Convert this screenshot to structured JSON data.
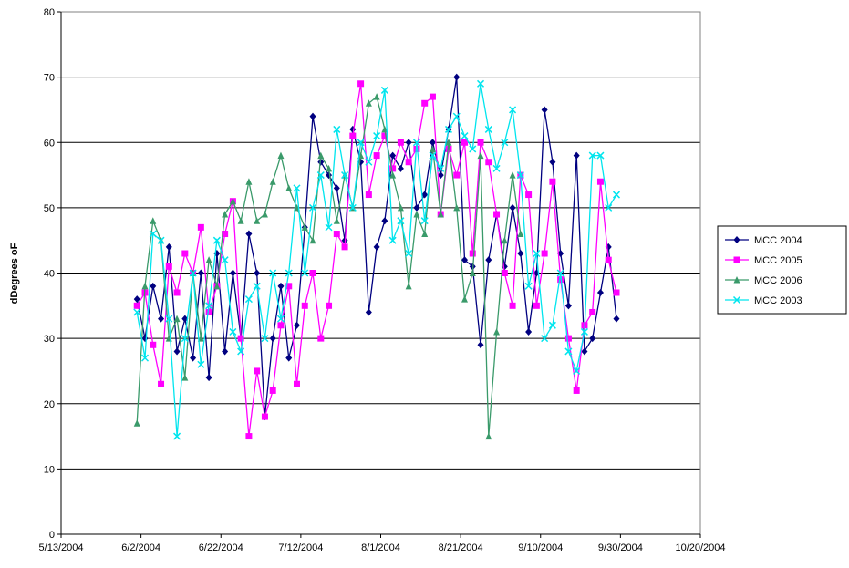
{
  "chart_data": {
    "type": "line",
    "y_label": "dDegrees  oF",
    "x": [
      "6/1/2004",
      "6/3/2004",
      "6/5/2004",
      "6/7/2004",
      "6/9/2004",
      "6/11/2004",
      "6/13/2004",
      "6/15/2004",
      "6/17/2004",
      "6/19/2004",
      "6/21/2004",
      "6/23/2004",
      "6/25/2004",
      "6/27/2004",
      "6/29/2004",
      "7/1/2004",
      "7/3/2004",
      "7/5/2004",
      "7/7/2004",
      "7/9/2004",
      "7/11/2004",
      "7/13/2004",
      "7/15/2004",
      "7/17/2004",
      "7/19/2004",
      "7/21/2004",
      "7/23/2004",
      "7/25/2004",
      "7/27/2004",
      "7/29/2004",
      "7/31/2004",
      "8/2/2004",
      "8/4/2004",
      "8/6/2004",
      "8/8/2004",
      "8/10/2004",
      "8/12/2004",
      "8/14/2004",
      "8/16/2004",
      "8/18/2004",
      "8/20/2004",
      "8/22/2004",
      "8/24/2004",
      "8/26/2004",
      "8/28/2004",
      "8/30/2004",
      "9/1/2004",
      "9/3/2004",
      "9/5/2004",
      "9/7/2004",
      "9/9/2004",
      "9/11/2004",
      "9/13/2004",
      "9/15/2004",
      "9/17/2004",
      "9/19/2004",
      "9/21/2004",
      "9/23/2004",
      "9/25/2004",
      "9/27/2004",
      "9/29/2004"
    ],
    "series": [
      {
        "name": "MCC 2004",
        "color": "#000080",
        "marker": "diamond",
        "values": [
          36,
          30,
          38,
          33,
          44,
          28,
          33,
          27,
          40,
          24,
          43,
          28,
          40,
          30,
          46,
          40,
          18,
          30,
          38,
          27,
          32,
          47,
          64,
          57,
          55,
          53,
          45,
          62,
          57,
          34,
          44,
          48,
          58,
          56,
          60,
          50,
          52,
          60,
          55,
          62,
          70,
          42,
          41,
          29,
          42,
          49,
          41,
          50,
          43,
          31,
          40,
          65,
          57,
          43,
          35,
          58,
          28,
          30,
          37,
          44,
          33
        ]
      },
      {
        "name": "MCC 2005",
        "color": "#ff00ff",
        "marker": "square",
        "values": [
          35,
          37,
          29,
          23,
          41,
          37,
          43,
          40,
          47,
          34,
          38,
          46,
          51,
          30,
          15,
          25,
          18,
          22,
          32,
          38,
          23,
          35,
          40,
          30,
          35,
          46,
          44,
          61,
          69,
          52,
          58,
          61,
          56,
          60,
          57,
          59,
          66,
          67,
          49,
          59,
          55,
          60,
          43,
          60,
          57,
          49,
          40,
          35,
          55,
          52,
          35,
          43,
          54,
          39,
          30,
          22,
          32,
          34,
          54,
          42,
          37
        ]
      },
      {
        "name": "MCC 2006",
        "color": "#3a9a6a",
        "marker": "triangle",
        "values": [
          17,
          38,
          48,
          45,
          30,
          33,
          24,
          40,
          30,
          42,
          38,
          49,
          51,
          48,
          54,
          48,
          49,
          54,
          58,
          53,
          50,
          47,
          45,
          58,
          56,
          48,
          55,
          50,
          58,
          66,
          67,
          62,
          55,
          50,
          38,
          49,
          46,
          59,
          49,
          60,
          50,
          36,
          40,
          58,
          15,
          31,
          45,
          55,
          46,
          null,
          null,
          null,
          null,
          null,
          null,
          null,
          null,
          null,
          null,
          null,
          null
        ]
      },
      {
        "name": "MCC 2003",
        "color": "#00e5ee",
        "marker": "cross",
        "values": [
          34,
          27,
          46,
          45,
          33,
          15,
          30,
          40,
          26,
          35,
          45,
          42,
          31,
          28,
          36,
          38,
          30,
          40,
          33,
          40,
          53,
          40,
          50,
          55,
          47,
          62,
          55,
          50,
          60,
          57,
          61,
          68,
          45,
          48,
          43,
          60,
          48,
          58,
          56,
          62,
          64,
          61,
          59,
          69,
          62,
          56,
          60,
          65,
          55,
          38,
          43,
          30,
          32,
          40,
          28,
          25,
          31,
          58,
          58,
          50,
          52
        ]
      }
    ],
    "xlim": [
      "5/13/2004",
      "10/20/2004"
    ],
    "xticks": [
      "5/13/2004",
      "6/2/2004",
      "6/22/2004",
      "7/12/2004",
      "8/1/2004",
      "8/21/2004",
      "9/10/2004",
      "9/30/2004",
      "10/20/2004"
    ],
    "ylim": [
      0,
      80
    ],
    "yticks": [
      0,
      10,
      20,
      30,
      40,
      50,
      60,
      70,
      80
    ],
    "grid": true,
    "legend": "right"
  }
}
